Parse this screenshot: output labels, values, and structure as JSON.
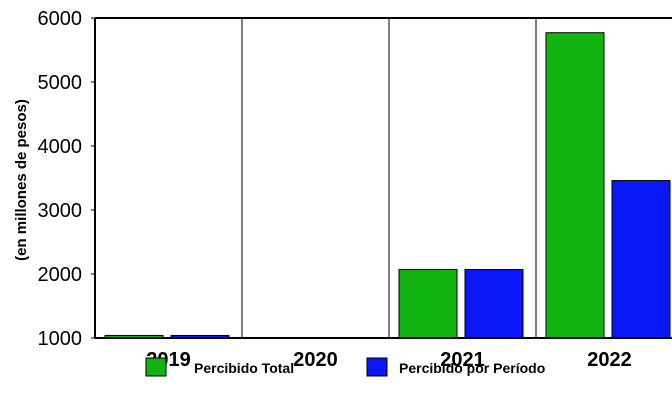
{
  "chart_data": {
    "type": "bar",
    "ylabel": "(en millones de pesos)",
    "xlabel": "",
    "ylim": [
      1000,
      6000
    ],
    "yticks": [
      "1000",
      "2000",
      "3000",
      "4000",
      "5000",
      "6000"
    ],
    "categories": [
      "2019",
      "2020",
      "2021",
      "2022"
    ],
    "grid": "vertical",
    "legend_position": "bottom",
    "series": [
      {
        "name": "Percibido Total",
        "color": "#11b411",
        "values": [
          1040,
          1000,
          2070,
          5770
        ]
      },
      {
        "name": "Percibido por Período",
        "color": "#0a18f5",
        "values": [
          1040,
          1000,
          2070,
          3460
        ]
      }
    ]
  }
}
